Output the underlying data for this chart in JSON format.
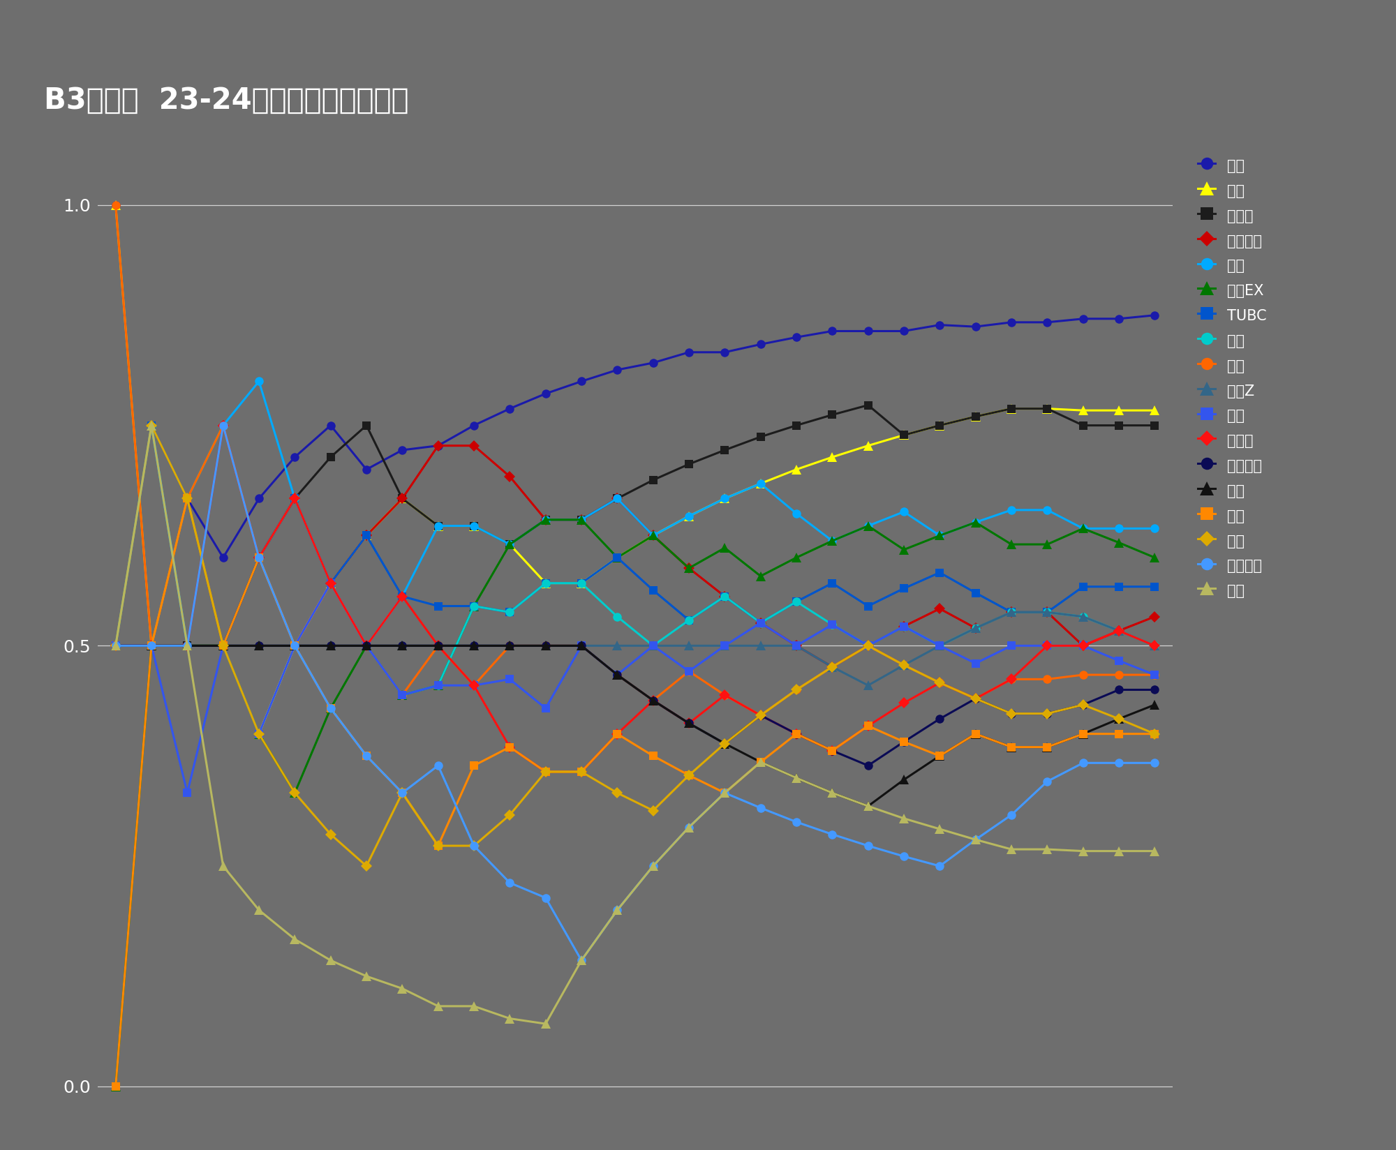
{
  "title": "B3リーグ  23-24レギュラーシーズン",
  "background_color": "#6e6e6e",
  "ylim": [
    -0.02,
    1.05
  ],
  "yticks": [
    0.0,
    0.5,
    1.0
  ],
  "series": [
    {
      "name": "福井",
      "color": "#1a1aaa",
      "marker": "o",
      "markersize": 9,
      "linewidth": 2.2,
      "data": [
        1.0,
        0.5,
        0.667,
        0.6,
        0.667,
        0.714,
        0.75,
        0.7,
        0.722,
        0.727,
        0.75,
        0.769,
        0.786,
        0.8,
        0.813,
        0.821,
        0.833,
        0.833,
        0.842,
        0.85,
        0.857,
        0.857,
        0.857,
        0.864,
        0.862,
        0.867,
        0.867,
        0.871,
        0.871,
        0.875
      ]
    },
    {
      "name": "香川",
      "color": "#ffff00",
      "marker": "^",
      "markersize": 10,
      "linewidth": 2.2,
      "data": [
        1.0,
        0.5,
        0.5,
        0.5,
        0.4,
        0.5,
        0.571,
        0.625,
        0.667,
        0.636,
        0.636,
        0.615,
        0.571,
        0.571,
        0.6,
        0.625,
        0.647,
        0.667,
        0.684,
        0.7,
        0.714,
        0.727,
        0.739,
        0.75,
        0.76,
        0.769,
        0.769,
        0.767,
        0.767,
        0.767
      ]
    },
    {
      "name": "鹿児島",
      "color": "#1c1c1c",
      "marker": "s",
      "markersize": 9,
      "linewidth": 2.2,
      "data": [
        0.5,
        0.5,
        0.5,
        0.5,
        0.6,
        0.667,
        0.714,
        0.75,
        0.667,
        0.636,
        0.636,
        0.615,
        0.643,
        0.643,
        0.667,
        0.688,
        0.706,
        0.722,
        0.737,
        0.75,
        0.762,
        0.773,
        0.739,
        0.75,
        0.76,
        0.769,
        0.769,
        0.75,
        0.75,
        0.75
      ]
    },
    {
      "name": "さいたま",
      "color": "#cc0000",
      "marker": "D",
      "markersize": 8,
      "linewidth": 2.2,
      "data": [
        0.5,
        0.5,
        0.5,
        0.75,
        0.6,
        0.667,
        0.571,
        0.625,
        0.667,
        0.727,
        0.727,
        0.692,
        0.643,
        0.643,
        0.667,
        0.625,
        0.588,
        0.556,
        0.526,
        0.5,
        0.476,
        0.5,
        0.522,
        0.542,
        0.52,
        0.538,
        0.538,
        0.5,
        0.517,
        0.533
      ]
    },
    {
      "name": "徳島",
      "color": "#00aaff",
      "marker": "o",
      "markersize": 9,
      "linewidth": 2.2,
      "data": [
        0.5,
        0.75,
        0.5,
        0.75,
        0.8,
        0.667,
        0.571,
        0.5,
        0.556,
        0.636,
        0.636,
        0.615,
        0.643,
        0.643,
        0.667,
        0.625,
        0.647,
        0.667,
        0.684,
        0.65,
        0.619,
        0.636,
        0.652,
        0.625,
        0.64,
        0.654,
        0.654,
        0.633,
        0.633,
        0.633
      ]
    },
    {
      "name": "横浜EX",
      "color": "#007700",
      "marker": "^",
      "markersize": 10,
      "linewidth": 2.2,
      "data": [
        0.0,
        0.5,
        0.5,
        0.5,
        0.4,
        0.333,
        0.429,
        0.5,
        0.444,
        0.455,
        0.545,
        0.615,
        0.643,
        0.643,
        0.6,
        0.625,
        0.588,
        0.611,
        0.579,
        0.6,
        0.619,
        0.636,
        0.609,
        0.625,
        0.64,
        0.615,
        0.615,
        0.633,
        0.617,
        0.6
      ]
    },
    {
      "name": "TUBC",
      "color": "#0055cc",
      "marker": "s",
      "markersize": 9,
      "linewidth": 2.2,
      "data": [
        0.5,
        0.75,
        0.667,
        0.5,
        0.6,
        0.667,
        0.571,
        0.625,
        0.556,
        0.545,
        0.545,
        0.538,
        0.571,
        0.571,
        0.6,
        0.563,
        0.529,
        0.556,
        0.526,
        0.55,
        0.571,
        0.545,
        0.565,
        0.583,
        0.56,
        0.538,
        0.538,
        0.567,
        0.567,
        0.567
      ]
    },
    {
      "name": "湘南",
      "color": "#00cccc",
      "marker": "o",
      "markersize": 9,
      "linewidth": 2.2,
      "data": [
        0.5,
        0.5,
        0.667,
        0.75,
        0.6,
        0.667,
        0.571,
        0.5,
        0.444,
        0.455,
        0.545,
        0.538,
        0.571,
        0.571,
        0.533,
        0.5,
        0.529,
        0.556,
        0.526,
        0.55,
        0.524,
        0.5,
        0.522,
        0.5,
        0.52,
        0.538,
        0.538,
        0.533,
        0.517,
        0.5
      ]
    },
    {
      "name": "立川",
      "color": "#ff6600",
      "marker": "o",
      "markersize": 9,
      "linewidth": 2.2,
      "data": [
        1.0,
        0.5,
        0.667,
        0.75,
        0.6,
        0.5,
        0.571,
        0.5,
        0.444,
        0.5,
        0.455,
        0.5,
        0.5,
        0.5,
        0.467,
        0.438,
        0.471,
        0.444,
        0.421,
        0.45,
        0.476,
        0.5,
        0.478,
        0.458,
        0.44,
        0.462,
        0.462,
        0.467,
        0.467,
        0.467
      ]
    },
    {
      "name": "東京Z",
      "color": "#336688",
      "marker": "^",
      "markersize": 10,
      "linewidth": 2.2,
      "data": [
        0.5,
        0.5,
        0.5,
        0.5,
        0.5,
        0.5,
        0.5,
        0.5,
        0.5,
        0.5,
        0.5,
        0.5,
        0.5,
        0.5,
        0.5,
        0.5,
        0.5,
        0.5,
        0.5,
        0.5,
        0.476,
        0.455,
        0.478,
        0.5,
        0.52,
        0.538,
        0.538,
        0.533,
        0.517,
        0.5
      ]
    },
    {
      "name": "岡山",
      "color": "#3355ee",
      "marker": "s",
      "markersize": 9,
      "linewidth": 2.2,
      "data": [
        0.5,
        0.5,
        0.333,
        0.5,
        0.4,
        0.5,
        0.571,
        0.5,
        0.444,
        0.455,
        0.455,
        0.462,
        0.429,
        0.5,
        0.467,
        0.5,
        0.471,
        0.5,
        0.526,
        0.5,
        0.524,
        0.5,
        0.522,
        0.5,
        0.48,
        0.5,
        0.5,
        0.5,
        0.483,
        0.467
      ]
    },
    {
      "name": "八王子",
      "color": "#ff1111",
      "marker": "D",
      "markersize": 8,
      "linewidth": 2.2,
      "data": [
        0.5,
        0.5,
        0.5,
        0.75,
        0.6,
        0.667,
        0.571,
        0.5,
        0.556,
        0.5,
        0.455,
        0.385,
        0.357,
        0.357,
        0.4,
        0.438,
        0.412,
        0.444,
        0.421,
        0.4,
        0.381,
        0.409,
        0.435,
        0.458,
        0.44,
        0.462,
        0.5,
        0.5,
        0.517,
        0.5
      ]
    },
    {
      "name": "しながわ",
      "color": "#0a0a55",
      "marker": "o",
      "markersize": 9,
      "linewidth": 2.2,
      "data": [
        0.5,
        0.5,
        0.5,
        0.5,
        0.5,
        0.5,
        0.5,
        0.5,
        0.5,
        0.5,
        0.5,
        0.5,
        0.5,
        0.5,
        0.467,
        0.438,
        0.412,
        0.389,
        0.421,
        0.4,
        0.381,
        0.364,
        0.391,
        0.417,
        0.44,
        0.423,
        0.423,
        0.433,
        0.45,
        0.45
      ]
    },
    {
      "name": "岐阜",
      "color": "#111111",
      "marker": "^",
      "markersize": 10,
      "linewidth": 2.2,
      "data": [
        0.5,
        0.5,
        0.5,
        0.5,
        0.5,
        0.5,
        0.5,
        0.5,
        0.5,
        0.5,
        0.5,
        0.5,
        0.5,
        0.5,
        0.467,
        0.438,
        0.412,
        0.389,
        0.368,
        0.35,
        0.333,
        0.318,
        0.348,
        0.375,
        0.4,
        0.385,
        0.385,
        0.4,
        0.417,
        0.433
      ]
    },
    {
      "name": "三重",
      "color": "#ff8800",
      "marker": "s",
      "markersize": 9,
      "linewidth": 2.2,
      "data": [
        0.0,
        0.5,
        0.667,
        0.5,
        0.6,
        0.5,
        0.429,
        0.375,
        0.333,
        0.273,
        0.364,
        0.385,
        0.357,
        0.357,
        0.4,
        0.375,
        0.353,
        0.333,
        0.368,
        0.4,
        0.381,
        0.409,
        0.391,
        0.375,
        0.4,
        0.385,
        0.385,
        0.4,
        0.4,
        0.4
      ]
    },
    {
      "name": "山口",
      "color": "#ddaa00",
      "marker": "D",
      "markersize": 8,
      "linewidth": 2.2,
      "data": [
        0.5,
        0.75,
        0.667,
        0.5,
        0.4,
        0.333,
        0.286,
        0.25,
        0.333,
        0.273,
        0.273,
        0.308,
        0.357,
        0.357,
        0.333,
        0.313,
        0.353,
        0.389,
        0.421,
        0.45,
        0.476,
        0.5,
        0.478,
        0.458,
        0.44,
        0.423,
        0.423,
        0.433,
        0.417,
        0.4
      ]
    },
    {
      "name": "豊田合成",
      "color": "#4499ff",
      "marker": "o",
      "markersize": 9,
      "linewidth": 2.2,
      "data": [
        0.5,
        0.5,
        0.5,
        0.75,
        0.6,
        0.5,
        0.429,
        0.375,
        0.333,
        0.364,
        0.273,
        0.231,
        0.214,
        0.143,
        0.2,
        0.25,
        0.294,
        0.333,
        0.316,
        0.3,
        0.286,
        0.273,
        0.261,
        0.25,
        0.28,
        0.308,
        0.346,
        0.367,
        0.367,
        0.367
      ]
    },
    {
      "name": "金沢",
      "color": "#b8b860",
      "marker": "^",
      "markersize": 10,
      "linewidth": 2.2,
      "data": [
        0.5,
        0.75,
        0.5,
        0.25,
        0.2,
        0.167,
        0.143,
        0.125,
        0.111,
        0.091,
        0.091,
        0.077,
        0.071,
        0.143,
        0.2,
        0.25,
        0.294,
        0.333,
        0.368,
        0.35,
        0.333,
        0.318,
        0.304,
        0.292,
        0.28,
        0.269,
        0.269,
        0.267,
        0.267,
        0.267
      ]
    }
  ]
}
